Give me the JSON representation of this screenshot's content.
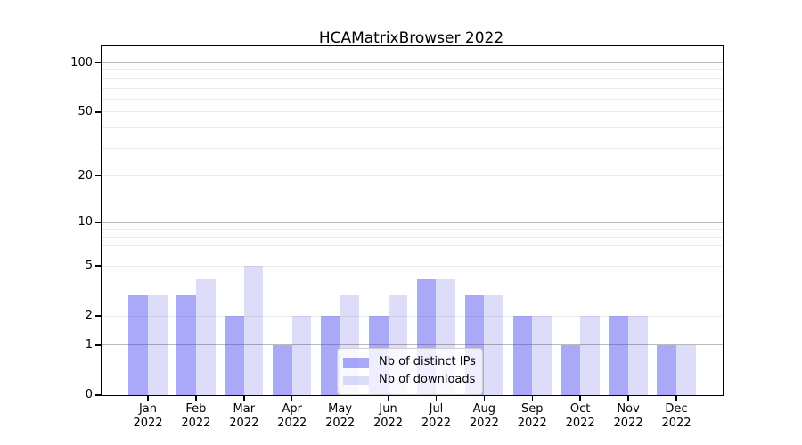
{
  "chart_data": {
    "type": "bar",
    "title": "HCAMatrixBrowser 2022",
    "categories": [
      "Jan",
      "Feb",
      "Mar",
      "Apr",
      "May",
      "Jun",
      "Jul",
      "Aug",
      "Sep",
      "Oct",
      "Nov",
      "Dec"
    ],
    "year_label": "2022",
    "series": [
      {
        "name": "Nb of distinct IPs",
        "color": "rgba(60,60,240,0.44)",
        "values": [
          3,
          3,
          2,
          1,
          2,
          2,
          4,
          3,
          2,
          1,
          2,
          1
        ]
      },
      {
        "name": "Nb of downloads",
        "color": "rgba(30,30,215,0.15)",
        "values": [
          3,
          4,
          5,
          2,
          3,
          3,
          4,
          3,
          2,
          2,
          2,
          1
        ]
      }
    ],
    "yscale": "log1p",
    "ylim": [
      0,
      126
    ],
    "y_ticks": [
      0,
      1,
      2,
      5,
      10,
      20,
      50,
      100
    ],
    "y_decade_gridlines": [
      1,
      10,
      100
    ],
    "y_minor_gridlines": [
      2,
      3,
      4,
      5,
      6,
      7,
      8,
      9,
      20,
      30,
      40,
      50,
      60,
      70,
      80,
      90
    ],
    "legend_position": "lower center",
    "grid": "horizontal",
    "colors": {
      "axis": "#000000",
      "text": "#000000",
      "grid_decade": "#b9b9b9",
      "grid_minor": "#ececec",
      "legend_border": "#cccccc",
      "legend_bg": "rgba(255,255,255,0.8)"
    }
  }
}
